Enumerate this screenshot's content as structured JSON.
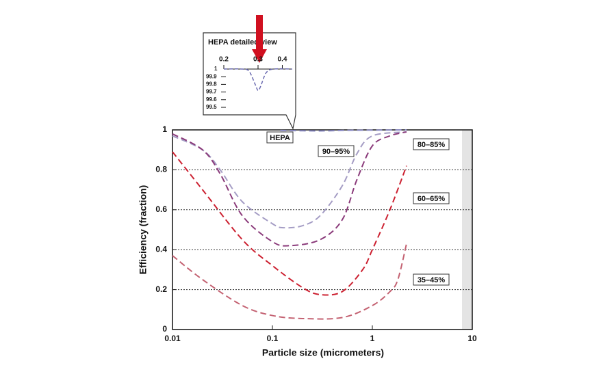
{
  "chart_data": [
    {
      "type": "line",
      "xlabel": "Particle size (micrometers)",
      "ylabel": "Efficiency (fraction)",
      "log_x": true,
      "xlim": [
        0.01,
        10
      ],
      "xticks": [
        0.01,
        0.1,
        1,
        10
      ],
      "ylim": [
        0,
        1
      ],
      "yticks": [
        0,
        0.2,
        0.4,
        0.6,
        0.8,
        1
      ],
      "grid": true,
      "series": [
        {
          "name": "HEPA",
          "color": "#8c8cc4",
          "x": [
            0.12,
            0.3,
            0.6,
            1.2,
            2.2
          ],
          "values": [
            0.997,
            0.995,
            0.998,
            0.999,
            1
          ]
        },
        {
          "name": "90–95%",
          "color": "#a49cc4",
          "x": [
            0.01,
            0.02,
            0.03,
            0.05,
            0.1,
            0.13,
            0.2,
            0.3,
            0.5,
            0.7,
            1,
            2.2
          ],
          "values": [
            0.97,
            0.9,
            0.8,
            0.64,
            0.53,
            0.51,
            0.52,
            0.57,
            0.72,
            0.88,
            0.97,
            0.99
          ]
        },
        {
          "name": "80–85%",
          "color": "#8a3a7a",
          "x": [
            0.01,
            0.02,
            0.03,
            0.05,
            0.1,
            0.15,
            0.3,
            0.5,
            0.7,
            1,
            1.5,
            2.2
          ],
          "values": [
            0.98,
            0.9,
            0.78,
            0.57,
            0.44,
            0.42,
            0.45,
            0.55,
            0.75,
            0.92,
            0.97,
            0.99
          ]
        },
        {
          "name": "60–65%",
          "color": "#cc2030",
          "x": [
            0.01,
            0.02,
            0.05,
            0.1,
            0.2,
            0.3,
            0.5,
            0.8,
            1,
            1.5,
            2.2
          ],
          "values": [
            0.89,
            0.7,
            0.45,
            0.32,
            0.21,
            0.175,
            0.19,
            0.3,
            0.4,
            0.6,
            0.82
          ]
        },
        {
          "name": "35–45%",
          "color": "#c46272",
          "x": [
            0.01,
            0.02,
            0.05,
            0.1,
            0.2,
            0.5,
            1,
            1.5,
            1.8,
            2.2
          ],
          "values": [
            0.37,
            0.25,
            0.12,
            0.07,
            0.055,
            0.06,
            0.12,
            0.19,
            0.25,
            0.43
          ]
        }
      ]
    },
    {
      "type": "line",
      "title": "HEPA detailed view",
      "log_x": true,
      "xlim": [
        0.2,
        0.45
      ],
      "xticks": [
        0.2,
        0.3,
        0.4
      ],
      "ylim": [
        99.5,
        100
      ],
      "yticks": [
        {
          "value": 100,
          "label": "1"
        },
        99.9,
        99.8,
        99.7,
        99.6,
        99.5
      ],
      "series": [
        {
          "color": "#6a6ab0",
          "x": [
            0.2,
            0.25,
            0.27,
            0.29,
            0.3,
            0.31,
            0.33,
            0.36,
            0.45
          ],
          "values": [
            100,
            100,
            99.97,
            99.8,
            99.72,
            99.78,
            99.95,
            100,
            100
          ]
        }
      ]
    }
  ]
}
